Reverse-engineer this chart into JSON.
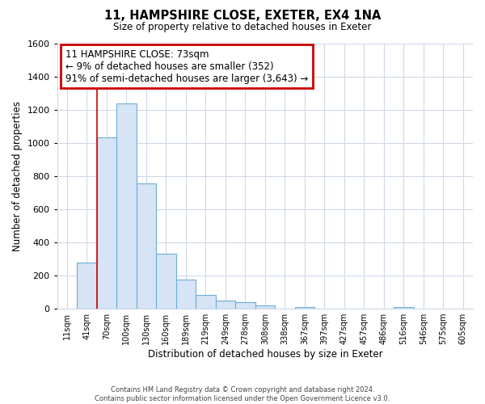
{
  "title": "11, HAMPSHIRE CLOSE, EXETER, EX4 1NA",
  "subtitle": "Size of property relative to detached houses in Exeter",
  "xlabel": "Distribution of detached houses by size in Exeter",
  "ylabel": "Number of detached properties",
  "bar_labels": [
    "11sqm",
    "41sqm",
    "70sqm",
    "100sqm",
    "130sqm",
    "160sqm",
    "189sqm",
    "219sqm",
    "249sqm",
    "278sqm",
    "308sqm",
    "338sqm",
    "367sqm",
    "397sqm",
    "427sqm",
    "457sqm",
    "486sqm",
    "516sqm",
    "546sqm",
    "575sqm",
    "605sqm"
  ],
  "bar_values": [
    0,
    280,
    1035,
    1240,
    755,
    330,
    175,
    85,
    50,
    38,
    18,
    0,
    10,
    0,
    0,
    0,
    0,
    8,
    0,
    0,
    0
  ],
  "bar_color": "#d6e4f5",
  "bar_edge_color": "#6baed6",
  "highlight_box_text": "11 HAMPSHIRE CLOSE: 73sqm\n← 9% of detached houses are smaller (352)\n91% of semi-detached houses are larger (3,643) →",
  "highlight_box_color": "#ffffff",
  "highlight_box_edge_color": "#cc0000",
  "highlight_line_color": "#cc0000",
  "ylim": [
    0,
    1600
  ],
  "yticks": [
    0,
    200,
    400,
    600,
    800,
    1000,
    1200,
    1400,
    1600
  ],
  "grid_color": "#d0d8e8",
  "footnote": "Contains HM Land Registry data © Crown copyright and database right 2024.\nContains public sector information licensed under the Open Government Licence v3.0.",
  "bg_color": "#ffffff",
  "title_fontsize": 10.5,
  "subtitle_fontsize": 8.5
}
